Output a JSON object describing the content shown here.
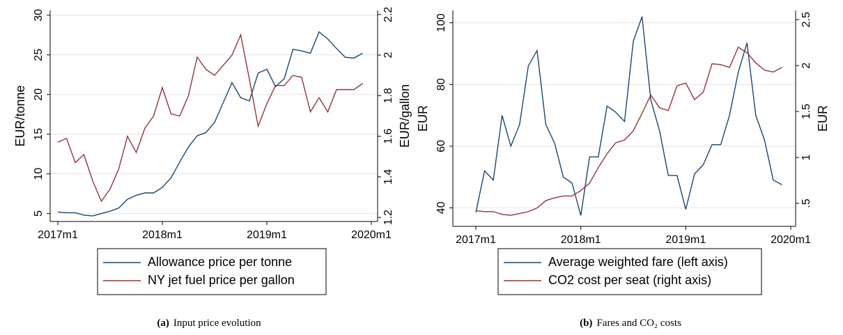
{
  "chart_data": [
    {
      "type": "line",
      "caption_label": "(a)",
      "caption": "Input price evolution",
      "ylabel": "EUR/tonne",
      "y2label": "EUR/gallon",
      "x": [
        "2017m1",
        "2017m2",
        "2017m3",
        "2017m4",
        "2017m5",
        "2017m6",
        "2017m7",
        "2017m8",
        "2017m9",
        "2017m10",
        "2017m11",
        "2017m12",
        "2018m1",
        "2018m2",
        "2018m3",
        "2018m4",
        "2018m5",
        "2018m6",
        "2018m7",
        "2018m8",
        "2018m9",
        "2018m10",
        "2018m11",
        "2018m12",
        "2019m1",
        "2019m2",
        "2019m3",
        "2019m4",
        "2019m5",
        "2019m6",
        "2019m7",
        "2019m8",
        "2019m9",
        "2019m10",
        "2019m11",
        "2019m12"
      ],
      "xticks": [
        "2017m1",
        "2018m1",
        "2019m1",
        "2020m1"
      ],
      "ylim": [
        4,
        30.6
      ],
      "yticks": [
        5,
        10,
        15,
        20,
        25,
        30
      ],
      "y2lim": [
        1.18,
        2.22
      ],
      "y2ticks": [
        1.2,
        1.4,
        1.6,
        1.8,
        2,
        2.2
      ],
      "grid": true,
      "series": [
        {
          "name": "Allowance price per tonne",
          "color": "#1a476f",
          "values": [
            5.2,
            5.1,
            5.1,
            4.8,
            4.7,
            5.0,
            5.3,
            5.7,
            6.8,
            7.3,
            7.6,
            7.6,
            8.3,
            9.5,
            11.5,
            13.4,
            14.8,
            15.2,
            16.5,
            19.0,
            21.5,
            19.6,
            19.2,
            22.7,
            23.2,
            21.0,
            22.0,
            25.7,
            25.5,
            25.2,
            27.9,
            27.0,
            25.8,
            24.7,
            24.6,
            25.2
          ]
        },
        {
          "name": "NY jet fuel price per gallon",
          "color": "#90353b",
          "axis": "y2",
          "values": [
            1.57,
            1.59,
            1.47,
            1.51,
            1.38,
            1.28,
            1.34,
            1.44,
            1.6,
            1.52,
            1.64,
            1.7,
            1.84,
            1.71,
            1.7,
            1.8,
            1.99,
            1.93,
            1.9,
            1.95,
            2.0,
            2.1,
            1.88,
            1.65,
            1.76,
            1.85,
            1.85,
            1.9,
            1.89,
            1.72,
            1.79,
            1.72,
            1.83,
            1.83,
            1.83,
            1.86
          ]
        }
      ]
    },
    {
      "type": "line",
      "caption_label": "(b)",
      "caption": "Fares and CO₂ costs",
      "ylabel": "EUR",
      "y2label": "EUR",
      "x": [
        "2017m1",
        "2017m2",
        "2017m3",
        "2017m4",
        "2017m5",
        "2017m6",
        "2017m7",
        "2017m8",
        "2017m9",
        "2017m10",
        "2017m11",
        "2017m12",
        "2018m1",
        "2018m2",
        "2018m3",
        "2018m4",
        "2018m5",
        "2018m6",
        "2018m7",
        "2018m8",
        "2018m9",
        "2018m10",
        "2018m11",
        "2018m12",
        "2019m1",
        "2019m2",
        "2019m3",
        "2019m4",
        "2019m5",
        "2019m6",
        "2019m7",
        "2019m8",
        "2019m9",
        "2019m10",
        "2019m11",
        "2019m12"
      ],
      "xticks": [
        "2017m1",
        "2018m1",
        "2019m1",
        "2020m1"
      ],
      "ylim": [
        34,
        104
      ],
      "yticks": [
        40,
        60,
        80,
        100
      ],
      "y2lim": [
        0.25,
        2.6
      ],
      "y2ticks": [
        {
          "value": 0.5,
          "label": ".5"
        },
        1,
        1.5,
        2,
        2.5
      ],
      "grid": true,
      "series": [
        {
          "name": "Average weighted fare (left axis)",
          "color": "#1a476f",
          "values": [
            38.5,
            52,
            49,
            70,
            60,
            67,
            86,
            91,
            67,
            61,
            50,
            48,
            37.5,
            56.5,
            56.5,
            73,
            71,
            68,
            94,
            102,
            75,
            65,
            50.5,
            50.5,
            39.5,
            51,
            54,
            60.5,
            60.5,
            70,
            84,
            93.5,
            70,
            62,
            49,
            47.5
          ]
        },
        {
          "name": "CO2 cost per seat (right axis)",
          "color": "#90353b",
          "axis": "y2",
          "values": [
            0.42,
            0.41,
            0.41,
            0.38,
            0.37,
            0.39,
            0.41,
            0.45,
            0.53,
            0.56,
            0.58,
            0.58,
            0.64,
            0.72,
            0.89,
            1.04,
            1.16,
            1.19,
            1.29,
            1.48,
            1.68,
            1.54,
            1.51,
            1.78,
            1.81,
            1.63,
            1.71,
            2.02,
            2.01,
            1.98,
            2.2,
            2.14,
            2.03,
            1.95,
            1.93,
            1.98
          ]
        }
      ]
    }
  ]
}
